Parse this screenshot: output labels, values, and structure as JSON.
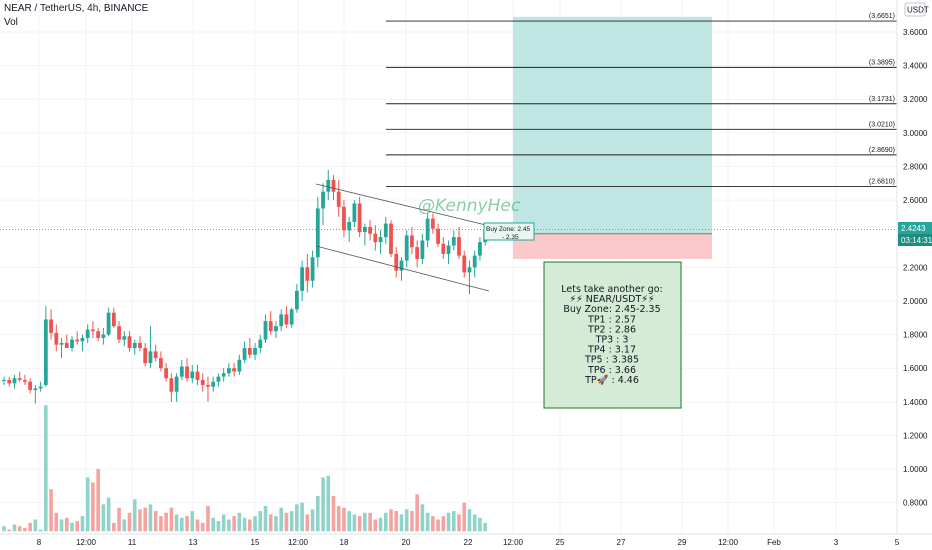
{
  "header": {
    "symbol": "NEAR / TetherUS, 4h, BINANCE",
    "indicator": "Vol"
  },
  "axis": {
    "currency": "USDT",
    "price_tag": "2.4243",
    "countdown": "03:14:31"
  },
  "watermark": "@KennyHec",
  "buy_zone_label_1": "Buy Zone: 2.45",
  "buy_zone_label_2": "- 2.35",
  "note": {
    "lines": [
      "Lets take another go:",
      "⚡⚡ NEAR/USDT⚡⚡",
      "Buy Zone: 2.45-2.35",
      "TP1 : 2.57",
      "TP2 : 2.86",
      "TP3 : 3",
      "TP4 : 3.17",
      "TP5 : 3.385",
      "TP6 : 3.66",
      "TP🚀 : 4.46"
    ]
  },
  "colors": {
    "up": "#26a69a",
    "down": "#ef5350",
    "vol_up": "#8fd3c9",
    "vol_down": "#f4a3a1",
    "target_zone": "#bfe6e2",
    "stop_zone": "#fbc9c9",
    "note_bg": "#d4ecd5",
    "note_border": "#1f7a2f",
    "price_tag_bg": "#26a69a",
    "channel": "#555555"
  },
  "chart_data": {
    "type": "candlestick",
    "y_ticks": [
      "3.6000",
      "3.4000",
      "3.2000",
      "3.0000",
      "2.8000",
      "2.6000",
      "2.2000",
      "2.0000",
      "1.8000",
      "1.6000",
      "1.4000",
      "1.2000",
      "1.0000",
      "0.8000"
    ],
    "x_ticks": [
      "8",
      "12:00",
      "11",
      "13",
      "15",
      "12:00",
      "18",
      "20",
      "22",
      "12:00",
      "25",
      "27",
      "29",
      "12:00",
      "Feb",
      "3",
      "5"
    ],
    "ylim": [
      0.63,
      3.73
    ],
    "price_levels": [
      {
        "value": 3.6651,
        "label": "(3.6651)"
      },
      {
        "value": 3.3895,
        "label": "(3.3895)"
      },
      {
        "value": 3.1731,
        "label": "(3.1731)"
      },
      {
        "value": 3.021,
        "label": "(3.0210)"
      },
      {
        "value": 2.869,
        "label": "(2.8690)"
      },
      {
        "value": 2.681,
        "label": "(2.6810)"
      }
    ],
    "last_price": 2.4243,
    "target_zone": [
      2.4,
      3.69
    ],
    "stop_zone": [
      2.25,
      2.4
    ],
    "candles": [
      [
        1.53,
        1.55,
        1.5,
        1.53
      ],
      [
        1.53,
        1.55,
        1.49,
        1.51
      ],
      [
        1.51,
        1.56,
        1.48,
        1.54
      ],
      [
        1.54,
        1.58,
        1.52,
        1.53
      ],
      [
        1.53,
        1.56,
        1.5,
        1.52
      ],
      [
        1.52,
        1.54,
        1.45,
        1.47
      ],
      [
        1.47,
        1.5,
        1.39,
        1.48
      ],
      [
        1.48,
        1.52,
        1.46,
        1.49
      ],
      [
        1.5,
        1.97,
        1.49,
        1.89
      ],
      [
        1.89,
        1.95,
        1.77,
        1.81
      ],
      [
        1.81,
        1.86,
        1.7,
        1.74
      ],
      [
        1.74,
        1.78,
        1.66,
        1.75
      ],
      [
        1.75,
        1.8,
        1.72,
        1.72
      ],
      [
        1.72,
        1.79,
        1.7,
        1.77
      ],
      [
        1.77,
        1.82,
        1.74,
        1.76
      ],
      [
        1.76,
        1.8,
        1.7,
        1.78
      ],
      [
        1.78,
        1.86,
        1.75,
        1.83
      ],
      [
        1.83,
        1.88,
        1.78,
        1.82
      ],
      [
        1.82,
        1.84,
        1.76,
        1.78
      ],
      [
        1.78,
        1.84,
        1.74,
        1.8
      ],
      [
        1.8,
        1.96,
        1.79,
        1.93
      ],
      [
        1.93,
        1.96,
        1.84,
        1.85
      ],
      [
        1.85,
        1.88,
        1.75,
        1.77
      ],
      [
        1.77,
        1.82,
        1.73,
        1.79
      ],
      [
        1.79,
        1.82,
        1.7,
        1.72
      ],
      [
        1.72,
        1.77,
        1.68,
        1.75
      ],
      [
        1.75,
        1.79,
        1.7,
        1.72
      ],
      [
        1.72,
        1.75,
        1.61,
        1.63
      ],
      [
        1.63,
        1.85,
        1.6,
        1.7
      ],
      [
        1.7,
        1.74,
        1.64,
        1.66
      ],
      [
        1.66,
        1.7,
        1.58,
        1.6
      ],
      [
        1.6,
        1.63,
        1.52,
        1.54
      ],
      [
        1.54,
        1.57,
        1.4,
        1.46
      ],
      [
        1.46,
        1.57,
        1.4,
        1.55
      ],
      [
        1.55,
        1.65,
        1.53,
        1.61
      ],
      [
        1.61,
        1.66,
        1.52,
        1.54
      ],
      [
        1.54,
        1.62,
        1.51,
        1.58
      ],
      [
        1.58,
        1.62,
        1.5,
        1.53
      ],
      [
        1.53,
        1.57,
        1.46,
        1.5
      ],
      [
        1.5,
        1.55,
        1.4,
        1.49
      ],
      [
        1.49,
        1.55,
        1.46,
        1.52
      ],
      [
        1.52,
        1.57,
        1.49,
        1.55
      ],
      [
        1.55,
        1.6,
        1.52,
        1.57
      ],
      [
        1.57,
        1.63,
        1.55,
        1.6
      ],
      [
        1.6,
        1.63,
        1.55,
        1.58
      ],
      [
        1.58,
        1.68,
        1.56,
        1.65
      ],
      [
        1.65,
        1.76,
        1.63,
        1.72
      ],
      [
        1.72,
        1.78,
        1.66,
        1.68
      ],
      [
        1.68,
        1.75,
        1.65,
        1.72
      ],
      [
        1.72,
        1.8,
        1.69,
        1.77
      ],
      [
        1.77,
        1.92,
        1.75,
        1.88
      ],
      [
        1.88,
        1.94,
        1.8,
        1.82
      ],
      [
        1.82,
        1.88,
        1.78,
        1.85
      ],
      [
        1.85,
        1.95,
        1.82,
        1.92
      ],
      [
        1.92,
        1.97,
        1.84,
        1.86
      ],
      [
        1.86,
        1.96,
        1.84,
        1.95
      ],
      [
        1.95,
        2.1,
        1.93,
        2.06
      ],
      [
        2.06,
        2.24,
        2.0,
        2.2
      ],
      [
        2.2,
        2.28,
        2.05,
        2.12
      ],
      [
        2.12,
        2.3,
        2.08,
        2.26
      ],
      [
        2.26,
        2.62,
        2.2,
        2.55
      ],
      [
        2.55,
        2.7,
        2.45,
        2.65
      ],
      [
        2.65,
        2.78,
        2.6,
        2.72
      ],
      [
        2.72,
        2.75,
        2.6,
        2.65
      ],
      [
        2.65,
        2.72,
        2.5,
        2.56
      ],
      [
        2.56,
        2.6,
        2.38,
        2.42
      ],
      [
        2.42,
        2.5,
        2.35,
        2.47
      ],
      [
        2.47,
        2.6,
        2.44,
        2.58
      ],
      [
        2.58,
        2.62,
        2.38,
        2.41
      ],
      [
        2.41,
        2.46,
        2.33,
        2.44
      ],
      [
        2.44,
        2.48,
        2.36,
        2.4
      ],
      [
        2.4,
        2.45,
        2.3,
        2.35
      ],
      [
        2.35,
        2.42,
        2.28,
        2.38
      ],
      [
        2.38,
        2.5,
        2.34,
        2.46
      ],
      [
        2.46,
        2.48,
        2.26,
        2.28
      ],
      [
        2.28,
        2.32,
        2.14,
        2.18
      ],
      [
        2.18,
        2.26,
        2.12,
        2.24
      ],
      [
        2.24,
        2.42,
        2.2,
        2.39
      ],
      [
        2.39,
        2.44,
        2.28,
        2.32
      ],
      [
        2.32,
        2.36,
        2.2,
        2.25
      ],
      [
        2.25,
        2.4,
        2.22,
        2.36
      ],
      [
        2.36,
        2.52,
        2.32,
        2.49
      ],
      [
        2.49,
        2.52,
        2.4,
        2.43
      ],
      [
        2.43,
        2.46,
        2.32,
        2.34
      ],
      [
        2.34,
        2.38,
        2.25,
        2.28
      ],
      [
        2.28,
        2.36,
        2.22,
        2.33
      ],
      [
        2.33,
        2.42,
        2.3,
        2.38
      ],
      [
        2.38,
        2.44,
        2.25,
        2.27
      ],
      [
        2.27,
        2.3,
        2.14,
        2.17
      ],
      [
        2.17,
        2.24,
        2.04,
        2.2
      ],
      [
        2.2,
        2.3,
        2.14,
        2.27
      ],
      [
        2.27,
        2.38,
        2.24,
        2.35
      ],
      [
        2.35,
        2.46,
        2.33,
        2.42
      ]
    ],
    "volume": [
      0.66,
      0.64,
      0.67,
      0.66,
      0.65,
      0.68,
      0.7,
      0.64,
      1.38,
      0.88,
      0.74,
      0.7,
      0.71,
      0.68,
      0.69,
      0.72,
      0.95,
      0.92,
      1.0,
      0.79,
      0.83,
      0.68,
      0.77,
      0.7,
      0.74,
      0.82,
      0.76,
      0.77,
      0.79,
      0.75,
      0.72,
      0.74,
      0.77,
      0.73,
      0.71,
      0.72,
      0.75,
      0.7,
      0.68,
      0.78,
      0.71,
      0.69,
      0.73,
      0.7,
      0.72,
      0.74,
      0.71,
      0.7,
      0.72,
      0.75,
      0.78,
      0.73,
      0.72,
      0.77,
      0.74,
      0.75,
      0.79,
      0.8,
      0.73,
      0.76,
      0.84,
      0.95,
      0.96,
      0.84,
      0.78,
      0.77,
      0.75,
      0.73,
      0.72,
      0.74,
      0.74,
      0.7,
      0.71,
      0.74,
      0.76,
      0.75,
      0.73,
      0.76,
      0.75,
      0.85,
      0.79,
      0.74,
      0.72,
      0.7,
      0.72,
      0.74,
      0.75,
      0.73,
      0.8,
      0.76,
      0.73,
      0.71,
      0.68
    ]
  }
}
